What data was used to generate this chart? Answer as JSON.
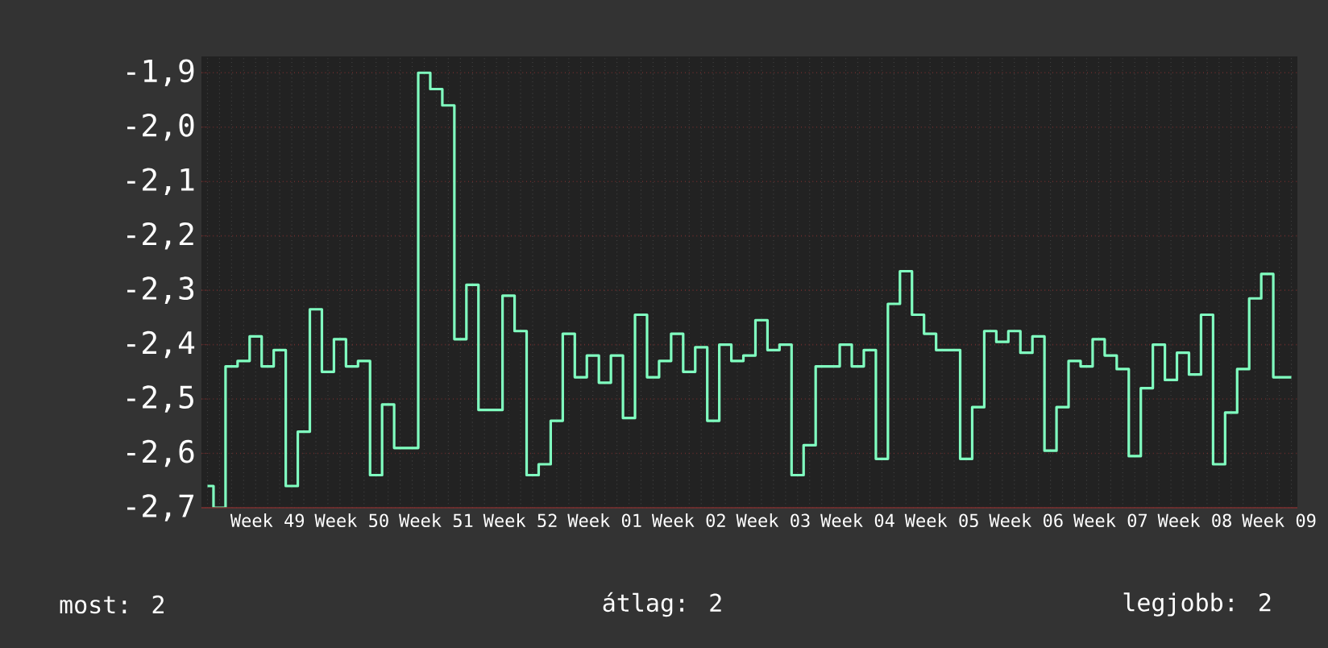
{
  "chart_data": {
    "type": "step",
    "categories": [
      null,
      null,
      null,
      null,
      null,
      "Week 49",
      null,
      null,
      null,
      null,
      null,
      null,
      "Week 50",
      null,
      null,
      null,
      null,
      null,
      null,
      "Week 51",
      null,
      null,
      null,
      null,
      null,
      null,
      "Week 52",
      null,
      null,
      null,
      null,
      null,
      null,
      "Week 01",
      null,
      null,
      null,
      null,
      null,
      null,
      "Week 02",
      null,
      null,
      null,
      null,
      null,
      null,
      "Week 03",
      null,
      null,
      null,
      null,
      null,
      null,
      "Week 04",
      null,
      null,
      null,
      null,
      null,
      null,
      "Week 05",
      null,
      null,
      null,
      null,
      null,
      null,
      "Week 06",
      null,
      null,
      null,
      null,
      null,
      null,
      "Week 07",
      null,
      null,
      null,
      null,
      null,
      null,
      "Week 08",
      null,
      null,
      null,
      null,
      null,
      null,
      "Week 09",
      null
    ],
    "series": [
      {
        "color": "#80ffc0",
        "values": [
          -2.66,
          -2.7,
          -2.44,
          -2.43,
          -2.385,
          -2.44,
          -2.41,
          -2.66,
          -2.56,
          -2.335,
          -2.45,
          -2.39,
          -2.44,
          -2.43,
          -2.64,
          -2.51,
          -2.59,
          -2.59,
          -1.9,
          -1.93,
          -1.96,
          -2.39,
          -2.29,
          -2.52,
          -2.52,
          -2.31,
          -2.375,
          -2.64,
          -2.62,
          -2.54,
          -2.38,
          -2.46,
          -2.42,
          -2.47,
          -2.42,
          -2.535,
          -2.345,
          -2.46,
          -2.43,
          -2.38,
          -2.45,
          -2.405,
          -2.54,
          -2.4,
          -2.43,
          -2.42,
          -2.355,
          -2.41,
          -2.4,
          -2.64,
          -2.585,
          -2.44,
          -2.44,
          -2.4,
          -2.44,
          -2.41,
          -2.61,
          -2.325,
          -2.265,
          -2.345,
          -2.38,
          -2.41,
          -2.41,
          -2.61,
          -2.515,
          -2.375,
          -2.395,
          -2.375,
          -2.415,
          -2.385,
          -2.595,
          -2.515,
          -2.43,
          -2.44,
          -2.39,
          -2.42,
          -2.445,
          -2.605,
          -2.48,
          -2.4,
          -2.465,
          -2.415,
          -2.455,
          -2.345,
          -2.62,
          -2.525,
          -2.445,
          -2.315,
          -2.27,
          -2.46,
          -2.46
        ]
      }
    ],
    "ylim": [
      -2.7,
      -1.87
    ],
    "yticks": [
      {
        "value": -2.7,
        "label": "-2,7"
      },
      {
        "value": -2.6,
        "label": "-2,6"
      },
      {
        "value": -2.5,
        "label": "-2,5"
      },
      {
        "value": -2.4,
        "label": "-2,4"
      },
      {
        "value": -2.3,
        "label": "-2,3"
      },
      {
        "value": -2.2,
        "label": "-2,2"
      },
      {
        "value": -2.1,
        "label": "-2,1"
      },
      {
        "value": -2.0,
        "label": "-2,0"
      },
      {
        "value": -1.9,
        "label": "-1,9"
      }
    ],
    "grid": true,
    "marker": "none",
    "line_style": "solid",
    "annotations": [
      "most: 2",
      "átlag: 2",
      "legjobb: 2"
    ]
  }
}
